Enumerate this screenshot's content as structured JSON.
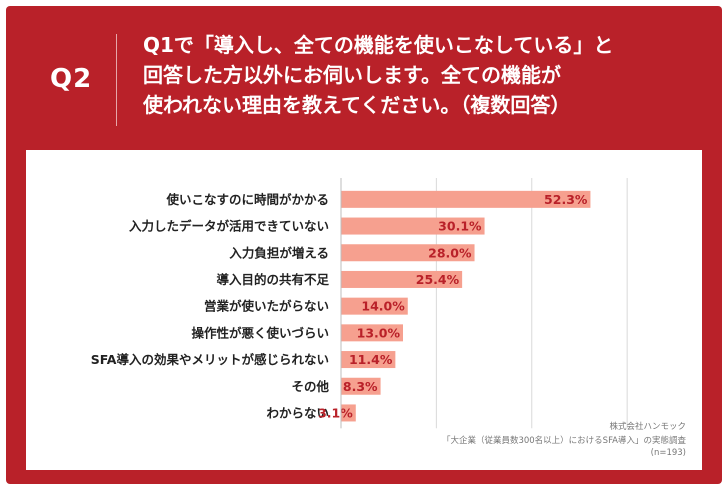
{
  "header": {
    "question_number": "Q2",
    "question_lines": [
      "Q1で「導入し、全ての機能を使いこなしている」と",
      "回答した方以外にお伺いします。全ての機能が",
      "使われない理由を教えてください。（複数回答）"
    ]
  },
  "colors": {
    "frame": "#b92129",
    "bar": "#f6a08f",
    "value_text": "#b92129"
  },
  "chart_data": {
    "type": "bar",
    "orientation": "horizontal",
    "categories": [
      "使いこなすのに時間がかかる",
      "入力したデータが活用できていない",
      "入力負担が増える",
      "導入目的の共有不足",
      "営業が使いたがらない",
      "操作性が悪く使いづらい",
      "SFA導入の効果やメリットが感じられない",
      "その他",
      "わからない"
    ],
    "values": [
      52.3,
      30.1,
      28.0,
      25.4,
      14.0,
      13.0,
      11.4,
      8.3,
      3.1
    ],
    "value_labels": [
      "52.3%",
      "30.1%",
      "28.0%",
      "25.4%",
      "14.0%",
      "13.0%",
      "11.4%",
      "8.3%",
      "3.1%"
    ],
    "xlim": [
      0,
      65
    ],
    "grid": true
  },
  "footnotes": {
    "company": "株式会社ハンモック",
    "survey": "「大企業（従業員数300名以上）におけるSFA導入」の実態調査",
    "sample": "(n=193)"
  }
}
